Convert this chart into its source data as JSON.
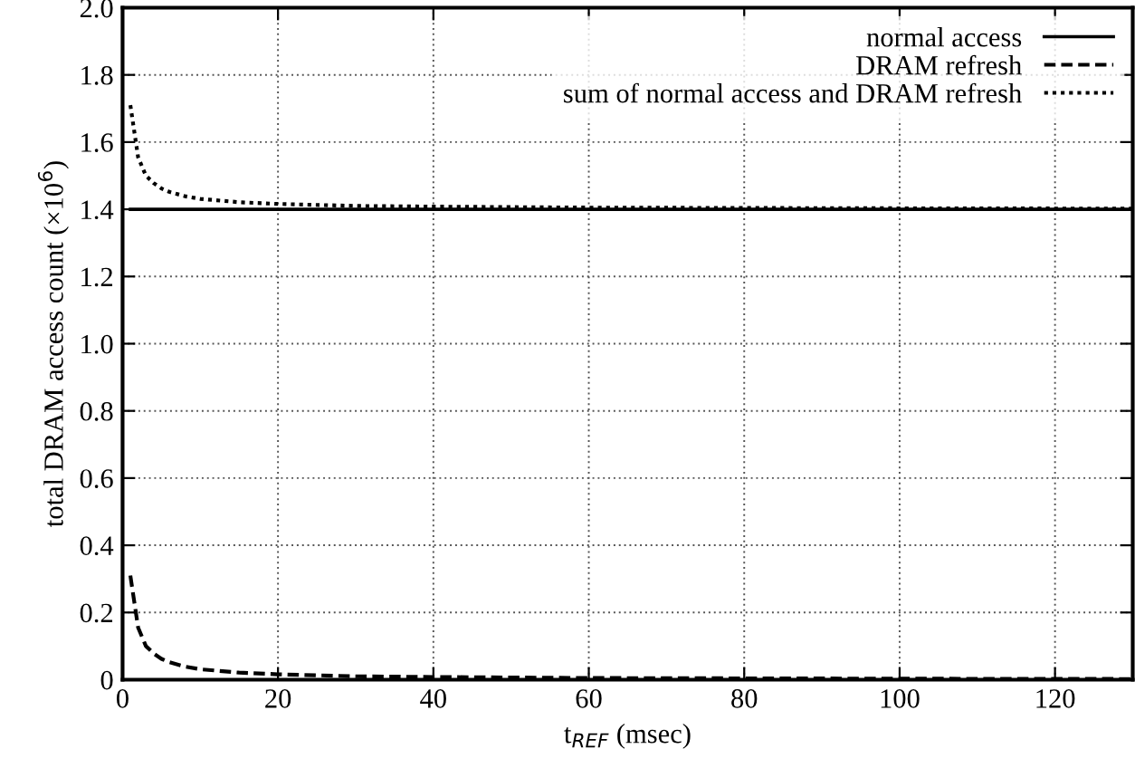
{
  "chart_data": {
    "type": "line",
    "xlabel": "t$_{REF}$ (msec)",
    "ylabel": "total DRAM access count (×10$^{6}$)",
    "x": [
      1,
      2,
      3,
      4,
      5,
      6,
      8,
      10,
      15,
      20,
      30,
      40,
      60,
      80,
      100,
      130
    ],
    "series": [
      {
        "name": "normal access",
        "color": "#000000",
        "line_style": "solid",
        "values": [
          1.4,
          1.4,
          1.4,
          1.4,
          1.4,
          1.4,
          1.4,
          1.4,
          1.4,
          1.4,
          1.4,
          1.4,
          1.4,
          1.4,
          1.4,
          1.4
        ]
      },
      {
        "name": "DRAM refresh",
        "color": "#000000",
        "line_style": "dashed",
        "values": [
          0.31,
          0.155,
          0.1,
          0.078,
          0.062,
          0.052,
          0.039,
          0.031,
          0.021,
          0.016,
          0.01,
          0.008,
          0.005,
          0.004,
          0.003,
          0.002
        ]
      },
      {
        "name": "sum of normal access and DRAM refresh",
        "color": "#000000",
        "line_style": "dotted",
        "values": [
          1.71,
          1.555,
          1.5,
          1.478,
          1.462,
          1.452,
          1.439,
          1.431,
          1.421,
          1.416,
          1.41,
          1.408,
          1.405,
          1.404,
          1.403,
          1.402
        ]
      }
    ],
    "xlim": [
      0,
      130
    ],
    "xticks": [
      0,
      20,
      40,
      60,
      80,
      100,
      120
    ],
    "ylim": [
      0,
      2.0
    ],
    "yticks": [
      0,
      0.2,
      0.4,
      0.6,
      0.8,
      {
        "value": 1.0,
        "label": "1.0"
      },
      1.2,
      1.4,
      1.6,
      1.8,
      {
        "value": 2.0,
        "label": "2.0"
      }
    ],
    "grid": true,
    "legend": "top right",
    "marker": "none"
  }
}
